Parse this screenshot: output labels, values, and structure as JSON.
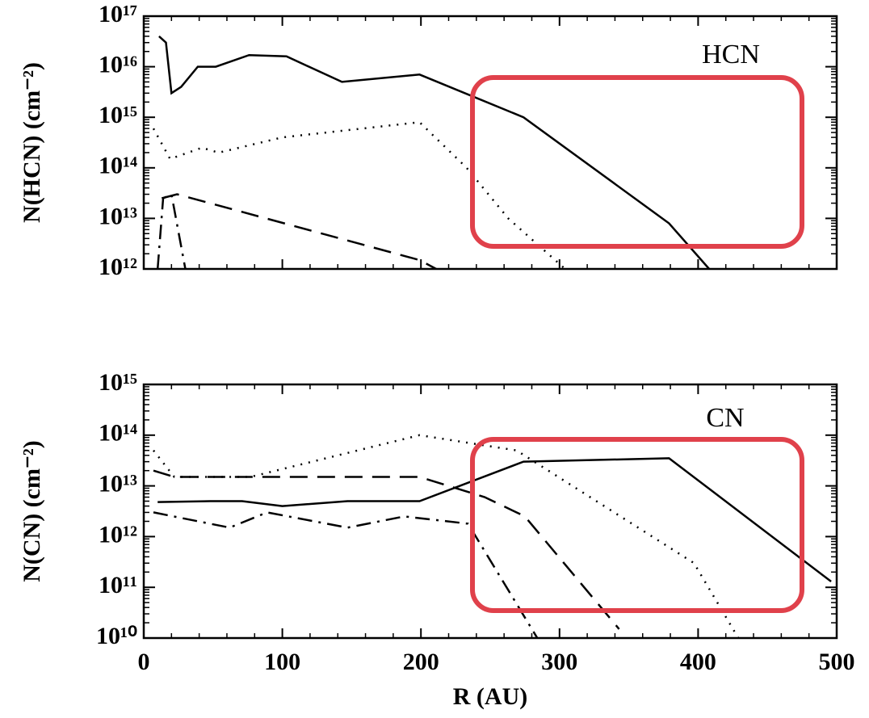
{
  "chart_data": [
    {
      "type": "line",
      "annotation": "HCN",
      "y_label": "N(HCN) (cm⁻²)",
      "log_y": true,
      "xlim": [
        0,
        500
      ],
      "xticks": [
        0,
        100,
        200,
        300,
        400,
        500
      ],
      "ylim": [
        1000000000000.0,
        1e+17
      ],
      "yticks": [
        {
          "value": 1000000000000.0,
          "label": "10¹²"
        },
        {
          "value": 10000000000000.0,
          "label": "10¹³"
        },
        {
          "value": 100000000000000.0,
          "label": "10¹⁴"
        },
        {
          "value": 1000000000000000.0,
          "label": "10¹⁵"
        },
        {
          "value": 1e+16,
          "label": "10¹⁶"
        },
        {
          "value": 1e+17,
          "label": "10¹⁷"
        }
      ],
      "series": [
        {
          "style": "solid",
          "color": "#000000",
          "x": [
            11,
            16,
            20,
            27,
            39,
            52,
            76,
            103,
            143,
            199,
            274,
            379,
            408
          ],
          "values": [
            4e+16,
            3e+16,
            3000000000000000.0,
            4000000000000000.0,
            1e+16,
            1e+16,
            1.7e+16,
            1.6e+16,
            5000000000000000.0,
            7000000000000000.0,
            1000000000000000.0,
            8000000000000.0,
            1000000000000.0
          ]
        },
        {
          "style": "dotted",
          "color": "#000000",
          "x": [
            7,
            19,
            42,
            54,
            100,
            199,
            233,
            263,
            304
          ],
          "values": [
            600000000000000.0,
            150000000000000.0,
            250000000000000.0,
            200000000000000.0,
            400000000000000.0,
            800000000000000.0,
            100000000000000.0,
            10000000000000.0,
            1000000000000.0
          ]
        },
        {
          "style": "dashed",
          "color": "#000000",
          "x": [
            13,
            24,
            199,
            211
          ],
          "values": [
            25000000000000.0,
            30000000000000.0,
            1500000000000.0,
            1000000000000.0
          ]
        },
        {
          "style": "dashdot",
          "color": "#000000",
          "x": [
            10,
            14,
            20,
            30
          ],
          "values": [
            1000000000000.0,
            25000000000000.0,
            30000000000000.0,
            1000000000000.0
          ]
        }
      ]
    },
    {
      "type": "line",
      "annotation": "CN",
      "y_label": "N(CN) (cm⁻²)",
      "x_label": "R (AU)",
      "log_y": true,
      "xlim": [
        0,
        500
      ],
      "xticks": [
        0,
        100,
        200,
        300,
        400,
        500
      ],
      "ylim": [
        10000000000.0,
        1000000000000000.0
      ],
      "yticks": [
        {
          "value": 10000000000.0,
          "label": "10¹⁰"
        },
        {
          "value": 100000000000.0,
          "label": "10¹¹"
        },
        {
          "value": 1000000000000.0,
          "label": "10¹²"
        },
        {
          "value": 10000000000000.0,
          "label": "10¹³"
        },
        {
          "value": 100000000000000.0,
          "label": "10¹⁴"
        },
        {
          "value": 1000000000000000.0,
          "label": "10¹⁵"
        }
      ],
      "series": [
        {
          "style": "solid",
          "color": "#000000",
          "x": [
            10,
            48,
            71,
            100,
            147,
            199,
            274,
            379,
            496
          ],
          "values": [
            4800000000000.0,
            5000000000000.0,
            5000000000000.0,
            4000000000000.0,
            5000000000000.0,
            5000000000000.0,
            30000000000000.0,
            35000000000000.0,
            130000000000.0
          ]
        },
        {
          "style": "dotted",
          "color": "#000000",
          "x": [
            7,
            22,
            77,
            199,
            269,
            397,
            429
          ],
          "values": [
            50000000000000.0,
            15000000000000.0,
            15000000000000.0,
            100000000000000.0,
            50000000000000.0,
            300000000000.0,
            10000000000.0
          ]
        },
        {
          "style": "dashed",
          "color": "#000000",
          "x": [
            7,
            22,
            199,
            246,
            275,
            343
          ],
          "values": [
            20000000000000.0,
            15000000000000.0,
            15000000000000.0,
            6000000000000.0,
            2500000000000.0,
            15000000000.0
          ]
        },
        {
          "style": "dashdot",
          "color": "#000000",
          "x": [
            7,
            62,
            89,
            147,
            188,
            234,
            284
          ],
          "values": [
            3000000000000.0,
            1500000000000.0,
            3000000000000.0,
            1500000000000.0,
            2500000000000.0,
            1800000000000.0,
            10000000000.0
          ]
        }
      ]
    }
  ]
}
